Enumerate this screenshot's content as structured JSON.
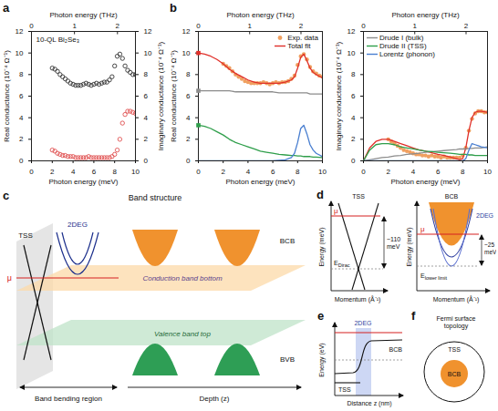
{
  "chart_data": [
    {
      "panel": "a",
      "type": "scatter",
      "annotation": "10-QL Bi₂Se₃",
      "x_label": "Photon energy (meV)",
      "x2_label": "Photon energy (THz)",
      "y_label": "Real conductance (10⁻⁴ Ω⁻¹)",
      "y2_label": "Imaginary conductance (10⁻⁴ Ω⁻¹)",
      "xlim": [
        0,
        10
      ],
      "xticks": [
        0,
        2,
        4,
        6,
        8,
        10
      ],
      "x2lim": [
        0,
        2.418
      ],
      "x2ticks": [
        0,
        1,
        2
      ],
      "ylim": [
        0,
        12
      ],
      "yticks": [
        0,
        2,
        4,
        6,
        8,
        10,
        12
      ],
      "y2lim": [
        0,
        12
      ],
      "y2ticks": [
        0,
        2,
        4,
        6,
        8,
        10,
        12
      ],
      "series": [
        {
          "color": "#333333",
          "marker": "open_circle",
          "x": [
            2,
            2.25,
            2.5,
            2.75,
            3,
            3.25,
            3.5,
            3.75,
            4,
            4.25,
            4.5,
            4.75,
            5,
            5.25,
            5.5,
            5.75,
            6,
            6.25,
            6.5,
            6.75,
            7,
            7.25,
            7.5,
            7.75,
            8,
            8.25,
            8.5,
            8.75,
            9,
            9.25,
            9.5,
            9.75,
            10
          ],
          "values": [
            8.6,
            8.5,
            8.3,
            8.0,
            7.8,
            7.6,
            7.4,
            7.2,
            7.1,
            7.0,
            7.0,
            7.0,
            7.1,
            7.2,
            7.1,
            7.0,
            7.1,
            7.2,
            7.1,
            7.2,
            7.3,
            7.3,
            7.5,
            7.8,
            8.8,
            9.7,
            9.9,
            9.5,
            8.8,
            8.4,
            8.2,
            8.0,
            8.0
          ]
        },
        {
          "color": "#e05050",
          "marker": "open_circle",
          "axis": "y2",
          "x": [
            2,
            2.25,
            2.5,
            2.75,
            3,
            3.25,
            3.5,
            3.75,
            4,
            4.25,
            4.5,
            4.75,
            5,
            5.25,
            5.5,
            5.75,
            6,
            6.25,
            6.5,
            6.75,
            7,
            7.25,
            7.5,
            7.75,
            8,
            8.25,
            8.5,
            8.75,
            9,
            9.25,
            9.5,
            9.75,
            10
          ],
          "values": [
            1.0,
            0.9,
            0.7,
            0.6,
            0.5,
            0.5,
            0.4,
            0.4,
            0.4,
            0.3,
            0.3,
            0.3,
            0.3,
            0.3,
            0.4,
            0.3,
            0.3,
            0.3,
            0.3,
            0.3,
            0.3,
            0.3,
            0.3,
            0.4,
            0.6,
            1.0,
            2.0,
            3.5,
            4.3,
            4.6,
            4.6,
            4.5,
            4.4
          ]
        }
      ]
    },
    {
      "panel": "b",
      "type": "line",
      "legend": "top-right",
      "x_label": "Photon energy (meV)",
      "x2_label": "Photon energy (THz)",
      "y_label": "Real conductance (10⁻⁴ Ω⁻¹)",
      "xlim": [
        0,
        10
      ],
      "xticks": [
        0,
        2,
        4,
        6,
        8,
        10
      ],
      "x2lim": [
        0,
        2.418
      ],
      "x2ticks": [
        0,
        1,
        2
      ],
      "ylim": [
        0,
        12
      ],
      "yticks": [
        0,
        2,
        4,
        6,
        8,
        10,
        12
      ],
      "series": [
        {
          "name": "Exp. data",
          "type": "scatter",
          "color": "#f0a060",
          "marker": "circle",
          "x": [
            2,
            2.25,
            2.5,
            2.75,
            3,
            3.25,
            3.5,
            3.75,
            4,
            4.25,
            4.5,
            4.75,
            5,
            5.25,
            5.5,
            5.75,
            6,
            6.25,
            6.5,
            6.75,
            7,
            7.25,
            7.5,
            7.75,
            8,
            8.25,
            8.5,
            8.75,
            9,
            9.25,
            9.5,
            9.75,
            10
          ],
          "values": [
            9.0,
            8.8,
            8.6,
            8.3,
            8.0,
            7.8,
            7.6,
            7.4,
            7.3,
            7.2,
            7.2,
            7.2,
            7.2,
            7.3,
            7.2,
            7.1,
            7.2,
            7.3,
            7.2,
            7.3,
            7.3,
            7.4,
            7.6,
            7.9,
            8.9,
            9.7,
            9.9,
            9.4,
            8.7,
            8.3,
            8.1,
            7.9,
            7.8
          ]
        },
        {
          "name": "Total fit",
          "type": "line",
          "color": "#e0302a",
          "marker": "square",
          "x": [
            0,
            0.5,
            1,
            1.5,
            2,
            2.5,
            3,
            3.5,
            4,
            4.5,
            5,
            5.5,
            6,
            6.5,
            7,
            7.5,
            7.75,
            8,
            8.25,
            8.5,
            8.75,
            9,
            9.25,
            9.5,
            10
          ],
          "values": [
            10,
            9.9,
            9.7,
            9.4,
            9.0,
            8.5,
            8.1,
            7.8,
            7.5,
            7.3,
            7.2,
            7.2,
            7.2,
            7.2,
            7.3,
            7.5,
            7.8,
            8.6,
            9.6,
            9.9,
            9.3,
            8.6,
            8.2,
            8.0,
            7.7
          ]
        },
        {
          "type": "line",
          "color": "#8c8c8c",
          "marker": "square",
          "x": [
            0,
            0.5,
            1,
            1.5,
            2,
            2.5,
            3,
            3.5,
            4,
            4.5,
            5,
            5.5,
            6,
            6.5,
            7,
            7.5,
            7.75,
            8,
            8.25,
            8.5,
            8.75,
            9,
            9.25,
            9.5,
            10
          ],
          "values": [
            6.5,
            6.5,
            6.5,
            6.5,
            6.5,
            6.5,
            6.4,
            6.4,
            6.4,
            6.4,
            6.4,
            6.4,
            6.4,
            6.3,
            6.3,
            6.3,
            6.3,
            6.3,
            6.3,
            6.3,
            6.3,
            6.2,
            6.2,
            6.2,
            6.2
          ]
        },
        {
          "type": "line",
          "color": "#2e9e4a",
          "marker": "square",
          "x": [
            0,
            0.5,
            1,
            1.5,
            2,
            2.5,
            3,
            3.5,
            4,
            4.5,
            5,
            5.5,
            6,
            6.5,
            7,
            7.5,
            7.75,
            8,
            8.25,
            8.5,
            8.75,
            9,
            9.25,
            9.5,
            10
          ],
          "values": [
            3.3,
            3.2,
            3.0,
            2.7,
            2.4,
            2.0,
            1.7,
            1.5,
            1.3,
            1.1,
            0.9,
            0.8,
            0.7,
            0.6,
            0.55,
            0.5,
            0.5,
            0.45,
            0.45,
            0.4,
            0.4,
            0.4,
            0.35,
            0.35,
            0.3
          ]
        },
        {
          "type": "line",
          "color": "#4a7fd0",
          "x": [
            0,
            0.5,
            1,
            1.5,
            2,
            2.5,
            3,
            3.5,
            4,
            4.5,
            5,
            5.5,
            6,
            6.5,
            7,
            7.5,
            7.75,
            8,
            8.25,
            8.5,
            8.75,
            9,
            9.25,
            9.5,
            10
          ],
          "values": [
            0,
            0,
            0,
            0,
            0,
            0,
            0,
            0,
            0,
            0,
            0,
            0,
            0,
            0.05,
            0.1,
            0.3,
            0.7,
            1.7,
            3.0,
            3.3,
            2.5,
            1.5,
            1.0,
            0.7,
            0.4
          ]
        }
      ]
    },
    {
      "type": "line",
      "legend": "top-left",
      "x_label": "Photon energy (meV)",
      "x2_label": "Photon energy (THz)",
      "y_label": "Imaginary conductance (10⁻⁴ Ω⁻¹)",
      "xlim": [
        0,
        10
      ],
      "xticks": [
        0,
        2,
        4,
        6,
        8,
        10
      ],
      "x2lim": [
        0,
        2.418
      ],
      "x2ticks": [
        0,
        1,
        2
      ],
      "ylim": [
        0,
        12
      ],
      "yticks": [
        0,
        2,
        4,
        6,
        8,
        10,
        12
      ],
      "series": [
        {
          "type": "scatter",
          "color": "#f0a060",
          "marker": "circle",
          "x": [
            2,
            2.25,
            2.5,
            2.75,
            3,
            3.25,
            3.5,
            3.75,
            4,
            4.25,
            4.5,
            4.75,
            5,
            5.25,
            5.5,
            5.75,
            6,
            6.25,
            6.5,
            6.75,
            7,
            7.25,
            7.5,
            7.75,
            8,
            8.25,
            8.5,
            8.75,
            9,
            9.25,
            9.5,
            9.75,
            10
          ],
          "values": [
            2.0,
            1.8,
            1.6,
            1.4,
            1.2,
            1.0,
            0.9,
            0.8,
            0.7,
            0.6,
            0.6,
            0.5,
            0.5,
            0.4,
            0.5,
            0.4,
            0.4,
            0.3,
            0.4,
            0.3,
            0.3,
            0.3,
            0.3,
            0.3,
            0.5,
            1.2,
            2.8,
            3.9,
            4.4,
            4.6,
            4.6,
            4.5,
            4.5
          ]
        },
        {
          "type": "line",
          "color": "#e0302a",
          "x": [
            0,
            0.5,
            1,
            1.5,
            2,
            2.5,
            3,
            3.5,
            4,
            4.5,
            5,
            5.5,
            6,
            6.5,
            7,
            7.5,
            7.75,
            8,
            8.25,
            8.5,
            8.75,
            9,
            9.25,
            9.5,
            10
          ],
          "values": [
            0,
            1.2,
            1.8,
            2.0,
            2.0,
            1.8,
            1.6,
            1.4,
            1.2,
            1.0,
            0.9,
            0.75,
            0.6,
            0.5,
            0.35,
            0.2,
            0.1,
            0.2,
            1.2,
            2.8,
            4.0,
            4.5,
            4.6,
            4.6,
            4.5
          ]
        },
        {
          "name": "Drude I (bulk)",
          "type": "line",
          "color": "#8c8c8c",
          "x": [
            0,
            0.5,
            1,
            1.5,
            2,
            2.5,
            3,
            3.5,
            4,
            4.5,
            5,
            5.5,
            6,
            6.5,
            7,
            7.5,
            7.75,
            8,
            8.25,
            8.5,
            8.75,
            9,
            9.25,
            9.5,
            10
          ],
          "values": [
            0,
            0.1,
            0.2,
            0.3,
            0.35,
            0.45,
            0.5,
            0.6,
            0.65,
            0.7,
            0.8,
            0.85,
            0.9,
            0.95,
            1.0,
            1.05,
            1.1,
            1.1,
            1.1,
            1.15,
            1.15,
            1.2,
            1.2,
            1.2,
            1.3
          ]
        },
        {
          "name": "Drude II (TSS)",
          "type": "line",
          "color": "#2e9e4a",
          "x": [
            0,
            0.5,
            1,
            1.5,
            2,
            2.5,
            3,
            3.5,
            4,
            4.5,
            5,
            5.5,
            6,
            6.5,
            7,
            7.5,
            7.75,
            8,
            8.25,
            8.5,
            8.75,
            9,
            9.25,
            9.5,
            10
          ],
          "values": [
            0,
            1.0,
            1.5,
            1.6,
            1.6,
            1.5,
            1.3,
            1.2,
            1.1,
            1.0,
            0.9,
            0.85,
            0.8,
            0.75,
            0.7,
            0.65,
            0.6,
            0.6,
            0.6,
            0.55,
            0.55,
            0.5,
            0.5,
            0.5,
            0.5
          ]
        },
        {
          "name": "Lorentz (phonon)",
          "type": "line",
          "color": "#4a7fd0",
          "x": [
            0,
            0.5,
            1,
            1.5,
            2,
            2.5,
            3,
            3.5,
            4,
            4.5,
            5,
            5.5,
            6,
            6.5,
            7,
            7.5,
            7.75,
            8,
            8.25,
            8.5,
            8.75,
            9,
            9.25,
            9.5,
            10
          ],
          "values": [
            0,
            0,
            0,
            0,
            0,
            0,
            0,
            0,
            0,
            0,
            0,
            0,
            0,
            0,
            0,
            0,
            0,
            0,
            0.2,
            1.0,
            1.6,
            1.5,
            1.4,
            1.3,
            1.2
          ]
        }
      ]
    }
  ],
  "diagrams": {
    "c": {
      "panel": "c",
      "title": "Band structure",
      "tss": "TSS",
      "twodeg": "2DEG",
      "bcb": "BCB",
      "bvb": "BVB",
      "mu": "μ",
      "conduction": "Conduction band bottom",
      "valence": "Valence band top",
      "band_bending": "Band bending region",
      "depth": "Depth (z)"
    },
    "d": {
      "panel": "d",
      "left": {
        "band": "TSS",
        "mu": "μ",
        "gap": "~110 meV",
        "level": {
          "main": "E",
          "sub": "Dirac"
        },
        "y_label": "Energy (meV)",
        "x_label": "Momentum (Å⁻¹)"
      },
      "right": {
        "bcb": "BCB",
        "twodeg": "2DEG",
        "mu": "μ",
        "gap": "~25 meV",
        "level": {
          "main": "E",
          "sub": "lower limit"
        },
        "y_label": "Energy (meV)",
        "x_label": "Momentum (Å⁻¹)"
      }
    },
    "e": {
      "panel": "e",
      "twodeg": "2DEG",
      "bcb": "BCB",
      "tss": "TSS",
      "y_label": "Energy (eV)",
      "x_label": "Distance z (nm)"
    },
    "f": {
      "panel": "f",
      "title": "Fermi surface topology",
      "tss": "TSS",
      "bcb": "BCB"
    }
  }
}
